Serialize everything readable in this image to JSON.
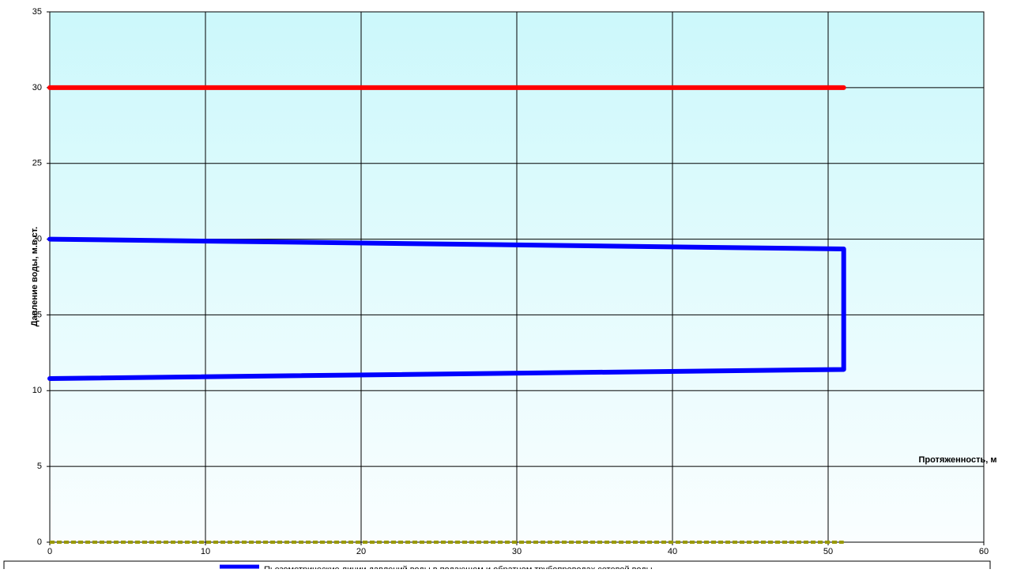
{
  "chart_data": {
    "type": "line",
    "xlabel": "Протяженность, м",
    "ylabel": "Давление воды, м.в.ст.",
    "xlim": [
      0,
      60
    ],
    "xticks": [
      0,
      10,
      20,
      30,
      40,
      50,
      60
    ],
    "ylim": [
      0,
      35
    ],
    "yticks": [
      0,
      5,
      10,
      15,
      20,
      25,
      30,
      35
    ],
    "grid": true,
    "series": [
      {
        "color": "#ff0000",
        "x": [
          0,
          51
        ],
        "values": [
          30,
          30
        ]
      },
      {
        "name": "Пьезометрические линии давлений воды в подающем и обратном трубопроводах сетевой воды",
        "color": "#0000ff",
        "x": [
          0,
          51,
          51,
          0
        ],
        "values": [
          20,
          19.35,
          11.4,
          10.8
        ]
      },
      {
        "color": "#999900",
        "dashed": true,
        "x": [
          0,
          51
        ],
        "values": [
          0,
          0
        ]
      }
    ]
  }
}
